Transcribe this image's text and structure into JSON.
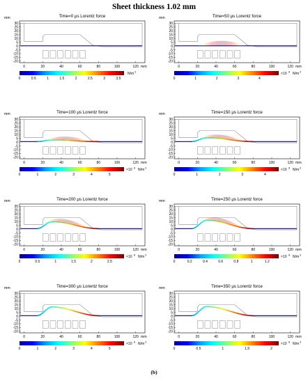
{
  "figure_title": "Sheet thickness 1.02 mm",
  "caption": "(b)",
  "axes_unit": "mm",
  "colorbar_unit": "N/m",
  "colorbar_unit_exp": "3",
  "scale_prefix": "×10",
  "scale_exp": "8",
  "x_ticks": [
    "0",
    "20",
    "40",
    "60",
    "80",
    "100",
    "120"
  ],
  "y_ticks": [
    "30",
    "25",
    "20",
    "15",
    "10",
    "5",
    "0",
    "-5",
    "-10",
    "-15",
    "-20"
  ],
  "colors": {
    "die": "#8c8c8c",
    "coil": "#9a9a9a",
    "sheet_base": "#1a1a9a",
    "colormap": [
      "#00008f",
      "#0000ff",
      "#00a0ff",
      "#00ffff",
      "#80ff80",
      "#ffff00",
      "#ff8000",
      "#ff0000",
      "#800000"
    ]
  },
  "chart_data": [
    {
      "type": "heatmap",
      "panel": 1,
      "title": "Time=0 μs  Lorentz force",
      "xlabel": "mm",
      "ylabel": "mm",
      "xlim": [
        -5,
        130
      ],
      "ylim": [
        -22,
        33
      ],
      "sheet_peak_mm": 0,
      "arrows": false,
      "colorbar": {
        "min": 0,
        "max": 3.7,
        "ticks": [
          "0",
          "0.5",
          "1",
          "1.5",
          "2",
          "2.5",
          "3",
          "3.5"
        ],
        "scaled": false
      }
    },
    {
      "type": "heatmap",
      "panel": 2,
      "title": "Time=50 μs  Lorentz force",
      "xlabel": "mm",
      "ylabel": "mm",
      "xlim": [
        -5,
        130
      ],
      "ylim": [
        -22,
        33
      ],
      "sheet_peak_mm": 0,
      "arrows": true,
      "colorbar": {
        "min": 0,
        "max": 4.9,
        "ticks": [
          "0",
          "1",
          "2",
          "3",
          "4"
        ],
        "scaled": true
      }
    },
    {
      "type": "heatmap",
      "panel": 3,
      "title": "Time=100 μs  Lorentz force",
      "xlabel": "mm",
      "ylabel": "mm",
      "xlim": [
        -5,
        130
      ],
      "ylim": [
        -22,
        33
      ],
      "sheet_peak_mm": 2,
      "arrows": true,
      "colorbar": {
        "min": 0,
        "max": 5.8,
        "ticks": [
          "0",
          "1",
          "2",
          "3",
          "4",
          "5"
        ],
        "scaled": true
      }
    },
    {
      "type": "heatmap",
      "panel": 4,
      "title": "Time=150 μs  Lorentz force",
      "xlabel": "mm",
      "ylabel": "mm",
      "xlim": [
        -5,
        130
      ],
      "ylim": [
        -22,
        33
      ],
      "sheet_peak_mm": 5,
      "arrows": true,
      "colorbar": {
        "min": 0,
        "max": 4.6,
        "ticks": [
          "0",
          "1",
          "2",
          "3",
          "4"
        ],
        "scaled": true
      }
    },
    {
      "type": "heatmap",
      "panel": 5,
      "title": "Time=200 μs  Lorentz force",
      "xlabel": "mm",
      "ylabel": "mm",
      "xlim": [
        -5,
        130
      ],
      "ylim": [
        -22,
        33
      ],
      "sheet_peak_mm": 9,
      "arrows": true,
      "colorbar": {
        "min": 0,
        "max": 2.9,
        "ticks": [
          "0",
          "0.5",
          "1",
          "1.5",
          "2",
          "2.5"
        ],
        "scaled": true
      }
    },
    {
      "type": "heatmap",
      "panel": 6,
      "title": "Time=250 μs  Lorentz force",
      "xlabel": "mm",
      "ylabel": "mm",
      "xlim": [
        -5,
        130
      ],
      "ylim": [
        -22,
        33
      ],
      "sheet_peak_mm": 11,
      "arrows": true,
      "colorbar": {
        "min": 0,
        "max": 1.35,
        "ticks": [
          "0",
          "0.2",
          "0.4",
          "0.6",
          "0.8",
          "1",
          "1.2"
        ],
        "scaled": true
      }
    },
    {
      "type": "heatmap",
      "panel": 7,
      "title": "Time=300 μs  Lorentz force",
      "xlabel": "mm",
      "ylabel": "mm",
      "xlim": [
        -5,
        130
      ],
      "ylim": [
        -22,
        33
      ],
      "sheet_peak_mm": 11.5,
      "arrows": false,
      "colorbar": {
        "min": 0,
        "max": 5.8,
        "ticks": [
          "0",
          "1",
          "2",
          "3",
          "4",
          "5"
        ],
        "scaled": true
      }
    },
    {
      "type": "heatmap",
      "panel": 8,
      "title": "Time=350 μs  Lorentz force",
      "xlabel": "mm",
      "ylabel": "mm",
      "xlim": [
        -5,
        130
      ],
      "ylim": [
        -22,
        33
      ],
      "sheet_peak_mm": 12,
      "arrows": false,
      "colorbar": {
        "min": 0,
        "max": 2.15,
        "ticks": [
          "0",
          "0.5",
          "1",
          "1.5",
          "2"
        ],
        "scaled": true
      }
    }
  ]
}
